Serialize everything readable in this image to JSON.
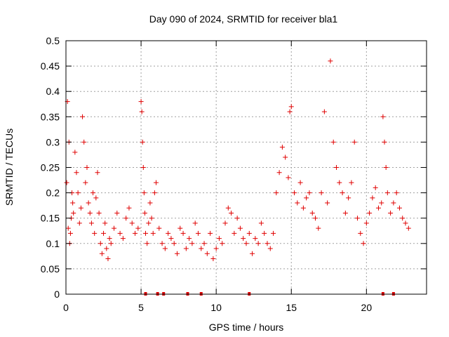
{
  "chart_data": {
    "type": "scatter",
    "title": "Day 090 of 2024, SRMTID for receiver bla1",
    "xlabel": "GPS time / hours",
    "ylabel": "SRMTID / TECUs",
    "xlim": [
      0,
      24
    ],
    "ylim": [
      0,
      0.5
    ],
    "xticks": [
      0,
      5,
      10,
      15,
      20
    ],
    "xtick_labels": [
      "0",
      "5",
      "10",
      "15",
      "20"
    ],
    "yticks": [
      0,
      0.05,
      0.1,
      0.15,
      0.2,
      0.25,
      0.3,
      0.35,
      0.4,
      0.45,
      0.5
    ],
    "ytick_labels": [
      "0",
      "0.05",
      "0.1",
      "0.15",
      "0.2",
      "0.25",
      "0.3",
      "0.35",
      "0.4",
      "0.45",
      "0.5"
    ],
    "grid": true,
    "marker": "+",
    "series": [
      {
        "name": "SRMTID",
        "color": "#e00000",
        "x": [
          0.05,
          0.1,
          0.15,
          0.2,
          0.25,
          0.3,
          0.35,
          0.4,
          0.45,
          0.5,
          0.6,
          0.7,
          0.8,
          0.9,
          1.0,
          1.1,
          1.2,
          1.3,
          1.4,
          1.5,
          1.6,
          1.7,
          1.8,
          1.9,
          2.0,
          2.1,
          2.2,
          2.3,
          2.4,
          2.5,
          2.6,
          2.7,
          2.8,
          2.9,
          3.0,
          3.2,
          3.4,
          3.6,
          3.8,
          4.0,
          4.2,
          4.4,
          4.6,
          4.8,
          5.0,
          5.05,
          5.1,
          5.15,
          5.2,
          5.25,
          5.3,
          5.4,
          5.5,
          5.6,
          5.7,
          5.8,
          5.9,
          6.0,
          6.2,
          6.4,
          6.6,
          6.8,
          7.0,
          7.2,
          7.4,
          7.6,
          7.8,
          8.0,
          8.2,
          8.4,
          8.6,
          8.8,
          9.0,
          9.2,
          9.4,
          9.6,
          9.8,
          10.0,
          10.2,
          10.4,
          10.6,
          10.8,
          11.0,
          11.2,
          11.4,
          11.6,
          11.8,
          12.0,
          12.2,
          12.4,
          12.6,
          12.8,
          13.0,
          13.2,
          13.4,
          13.6,
          13.8,
          14.0,
          14.2,
          14.4,
          14.6,
          14.8,
          14.9,
          15.0,
          15.2,
          15.4,
          15.6,
          15.8,
          16.0,
          16.2,
          16.4,
          16.6,
          16.8,
          17.0,
          17.2,
          17.4,
          17.6,
          17.8,
          18.0,
          18.2,
          18.4,
          18.6,
          18.8,
          19.0,
          19.2,
          19.4,
          19.6,
          19.8,
          20.0,
          20.2,
          20.4,
          20.6,
          20.8,
          21.0,
          21.1,
          21.2,
          21.3,
          21.4,
          21.6,
          21.8,
          22.0,
          22.2,
          22.4,
          22.6,
          22.8
        ],
        "y": [
          0.22,
          0.38,
          0.13,
          0.3,
          0.1,
          0.12,
          0.15,
          0.2,
          0.18,
          0.16,
          0.28,
          0.24,
          0.2,
          0.14,
          0.17,
          0.35,
          0.3,
          0.22,
          0.25,
          0.18,
          0.16,
          0.14,
          0.2,
          0.12,
          0.19,
          0.24,
          0.16,
          0.1,
          0.08,
          0.12,
          0.14,
          0.09,
          0.07,
          0.11,
          0.1,
          0.13,
          0.16,
          0.12,
          0.11,
          0.15,
          0.17,
          0.14,
          0.12,
          0.13,
          0.38,
          0.36,
          0.3,
          0.25,
          0.2,
          0.16,
          0.12,
          0.1,
          0.14,
          0.18,
          0.15,
          0.12,
          0.2,
          0.22,
          0.13,
          0.1,
          0.09,
          0.12,
          0.11,
          0.1,
          0.08,
          0.13,
          0.12,
          0.09,
          0.11,
          0.1,
          0.14,
          0.12,
          0.09,
          0.1,
          0.08,
          0.12,
          0.07,
          0.09,
          0.11,
          0.1,
          0.14,
          0.17,
          0.16,
          0.12,
          0.15,
          0.13,
          0.11,
          0.1,
          0.12,
          0.08,
          0.11,
          0.1,
          0.14,
          0.12,
          0.1,
          0.09,
          0.12,
          0.2,
          0.24,
          0.29,
          0.27,
          0.23,
          0.36,
          0.37,
          0.2,
          0.18,
          0.22,
          0.17,
          0.19,
          0.2,
          0.16,
          0.15,
          0.13,
          0.2,
          0.36,
          0.18,
          0.46,
          0.3,
          0.25,
          0.22,
          0.2,
          0.16,
          0.19,
          0.22,
          0.3,
          0.15,
          0.12,
          0.1,
          0.14,
          0.16,
          0.19,
          0.21,
          0.17,
          0.18,
          0.35,
          0.3,
          0.25,
          0.2,
          0.16,
          0.18,
          0.2,
          0.17,
          0.15,
          0.14,
          0.13
        ],
        "zero_x": [
          5.3,
          6.1,
          6.5,
          8.1,
          9.0,
          12.2,
          21.1,
          21.8
        ]
      }
    ]
  }
}
